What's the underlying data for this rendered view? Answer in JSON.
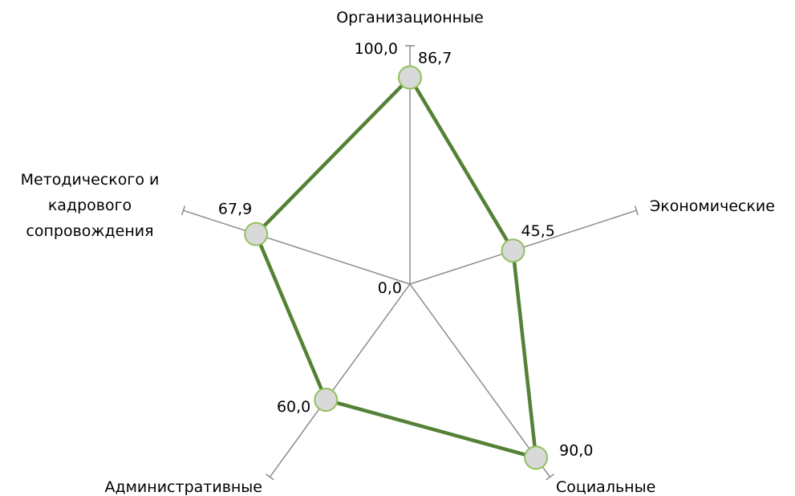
{
  "chart_data": {
    "type": "radar",
    "categories": [
      "Организационные",
      "Экономические",
      "Социальные",
      "Административные",
      "Методического и кадрового сопровождения"
    ],
    "category_label_lines": [
      [
        "Организационные"
      ],
      [
        "Экономические"
      ],
      [
        "Социальные"
      ],
      [
        "Административные"
      ],
      [
        "Методического и",
        "кадрового",
        "сопровождения"
      ]
    ],
    "values": [
      86.7,
      45.5,
      90.0,
      60.0,
      67.9
    ],
    "value_labels": [
      "86,7",
      "45,5",
      "90,0",
      "60,0",
      "67,9"
    ],
    "axis_tick_labels": {
      "min": "0,0",
      "max": "100,0"
    },
    "range": [
      0,
      100
    ],
    "grid": false,
    "legend": "none",
    "colors": {
      "line": "#538135",
      "marker_fill": "#d9d9d9",
      "marker_stroke": "#92c05c",
      "axis": "#8c8c8c"
    }
  }
}
